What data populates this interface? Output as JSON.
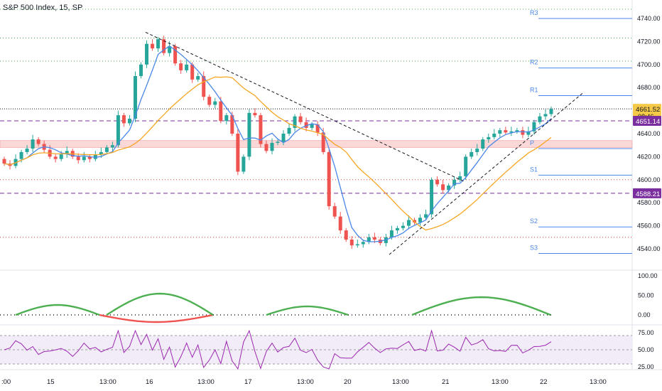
{
  "header": {
    "title": "S&P 500 Index, 15, SP"
  },
  "chart_data": {
    "type": "candlestick",
    "price_axis": {
      "ticks": [
        4540,
        4560,
        4580,
        4600,
        4620,
        4640,
        4660,
        4680,
        4700,
        4720,
        4740
      ]
    },
    "time_axis": {
      "labels": [
        ":00",
        "15",
        "13:00",
        "16",
        "13:00",
        "17",
        "13:00",
        "20",
        "13:00",
        "21",
        "13:00",
        "22",
        "13:00"
      ]
    },
    "price_labels": [
      {
        "text": "4661.52",
        "sub": "08:46",
        "value": 4661.52,
        "color": "#f7c948",
        "text_color": "#131722"
      },
      {
        "text": "4651.14",
        "value": 4651.14,
        "color": "#7b2f9e",
        "text_color": "#ffffff"
      },
      {
        "text": "4588.21",
        "value": 4588.21,
        "color": "#7b2f9e",
        "text_color": "#ffffff"
      }
    ],
    "pivots": [
      {
        "name": "R3",
        "value": 4740
      },
      {
        "name": "R2",
        "value": 4697
      },
      {
        "name": "R1",
        "value": 4673
      },
      {
        "name": "P",
        "value": 4627
      },
      {
        "name": "S1",
        "value": 4604
      },
      {
        "name": "S2",
        "value": 4559
      },
      {
        "name": "S3",
        "value": 4536
      }
    ],
    "horizontal_levels": [
      {
        "value": 4748,
        "style": "green-dotted"
      },
      {
        "value": 4723,
        "style": "green-dotted"
      },
      {
        "value": 4703,
        "style": "green-dotted"
      },
      {
        "value": 4661.5,
        "style": "black-dotted"
      },
      {
        "value": 4651.14,
        "style": "purple-dashed"
      },
      {
        "value": 4600,
        "style": "red-dotted"
      },
      {
        "value": 4588.21,
        "style": "purple-dashed"
      },
      {
        "value": 4550,
        "style": "red-dotted"
      }
    ],
    "zone": {
      "from": 4628,
      "to": 4634
    },
    "series": [
      {
        "kind": "candles",
        "closes": [
          4614,
          4612,
          4618,
          4624,
          4627,
          4635,
          4631,
          4626,
          4620,
          4618,
          4622,
          4625,
          4620,
          4617,
          4620,
          4618,
          4622,
          4624,
          4628,
          4630,
          4656,
          4649,
          4653,
          4690,
          4700,
          4718,
          4714,
          4722,
          4710,
          4716,
          4701,
          4695,
          4700,
          4687,
          4690,
          4672,
          4665,
          4668,
          4651,
          4656,
          4640,
          4607,
          4620,
          4658,
          4656,
          4631,
          4625,
          4632,
          4633,
          4640,
          4645,
          4655,
          4650,
          4645,
          4648,
          4641,
          4624,
          4577,
          4568,
          4556,
          4548,
          4543,
          4544,
          4546,
          4550,
          4548,
          4545,
          4550,
          4556,
          4558,
          4560,
          4565,
          4563,
          4567,
          4570,
          4600,
          4596,
          4591,
          4595,
          4600,
          4603,
          4620,
          4624,
          4627,
          4635,
          4637,
          4640,
          4643,
          4641,
          4642,
          4643,
          4639,
          4642,
          4650,
          4655,
          4657,
          4661.52
        ]
      },
      {
        "kind": "ma",
        "name": "",
        "color": "#4a86e8"
      },
      {
        "kind": "ma",
        "name": "",
        "color": "#f5a623"
      }
    ],
    "oscillator": {
      "ticks": [
        100,
        50,
        0
      ]
    },
    "rsi": {
      "ticks": [
        75,
        50,
        25
      ],
      "band": [
        30,
        70
      ]
    }
  }
}
